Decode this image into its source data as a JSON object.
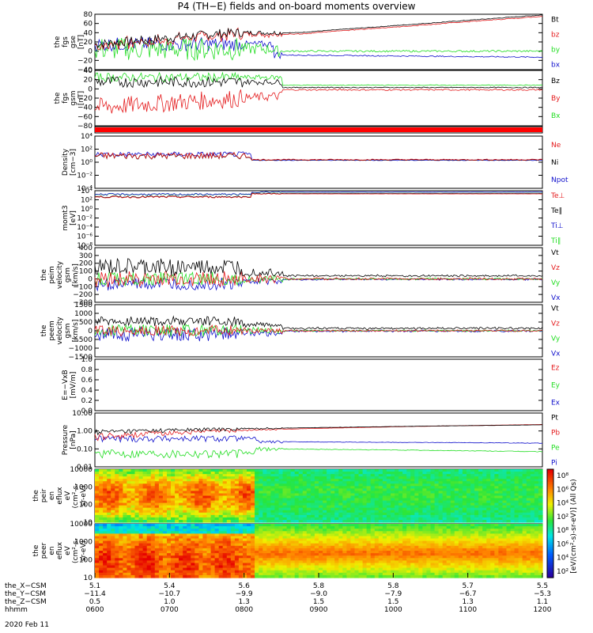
{
  "title": "P4 (TH−E) fields and on-board moments overview",
  "date_label": "2020 Feb 11",
  "colors": {
    "black": "#000000",
    "red": "#e41a1c",
    "green": "#22dd22",
    "blue": "#1010cc"
  },
  "chart_data": [
    {
      "type": "line",
      "title": "",
      "ylabel": [
        "the",
        "fgs",
        "gse",
        "[nT]"
      ],
      "ylim": [
        -40,
        80
      ],
      "yticks": [
        "80",
        "60",
        "40",
        "20",
        "0",
        "−20",
        "−40"
      ],
      "legend": [
        "Bt",
        "bz",
        "by",
        "bx"
      ],
      "legend_colors": [
        "#000000",
        "#e41a1c",
        "#22dd22",
        "#1010cc"
      ]
    },
    {
      "type": "line",
      "title": "",
      "ylabel": [
        "the",
        "fgs",
        "gsm",
        "[nT]"
      ],
      "ylim": [
        -80,
        40
      ],
      "yticks": [
        "40",
        "20",
        "0",
        "−20",
        "−40",
        "−60",
        "−80"
      ],
      "legend": [
        "Bz",
        "By",
        "Bx"
      ],
      "legend_colors": [
        "#000000",
        "#e41a1c",
        "#22dd22"
      ]
    },
    {
      "type": "flag",
      "title": "",
      "ylabel": [],
      "legend": [],
      "legend_colors": []
    },
    {
      "type": "line",
      "title": "",
      "ylabel": [
        "Density",
        "[cm−3]"
      ],
      "scale": "log",
      "yticks": [
        "10⁴",
        "10²",
        "10⁰",
        "10⁻²",
        "10⁻⁴"
      ],
      "legend": [
        "Ne",
        "Ni",
        "Npot"
      ],
      "legend_colors": [
        "#e41a1c",
        "#000000",
        "#1010cc"
      ]
    },
    {
      "type": "line",
      "title": "",
      "ylabel": [
        "momt3",
        "[eV]"
      ],
      "scale": "log",
      "yticks": [
        "10⁴",
        "10²",
        "10⁰",
        "10⁻²",
        "10⁻⁴",
        "10⁻⁶",
        "10⁻⁸"
      ],
      "legend": [
        "Te⊥",
        "Te∥",
        "Ti⊥",
        "Ti∥"
      ],
      "legend_colors": [
        "#e41a1c",
        "#000000",
        "#1010cc",
        "#22dd22"
      ]
    },
    {
      "type": "line",
      "title": "",
      "ylabel": [
        "the",
        "peim",
        "velocity",
        "gsm",
        "[km/s]"
      ],
      "ylim": [
        -300,
        400
      ],
      "yticks": [
        "400",
        "300",
        "200",
        "100",
        "0",
        "−100",
        "−200",
        "−300"
      ],
      "legend": [
        "Vt",
        "Vz",
        "Vy",
        "Vx"
      ],
      "legend_colors": [
        "#000000",
        "#e41a1c",
        "#22dd22",
        "#1010cc"
      ]
    },
    {
      "type": "line",
      "title": "",
      "ylabel": [
        "the",
        "peem",
        "velocity",
        "gsm",
        "[km/s]"
      ],
      "ylim": [
        -1500,
        1500
      ],
      "yticks": [
        "1500",
        "1000",
        "500",
        "0",
        "−500",
        "−1000",
        "−1500"
      ],
      "legend": [
        "Vt",
        "Vz",
        "Vy",
        "Vx"
      ],
      "legend_colors": [
        "#000000",
        "#e41a1c",
        "#22dd22",
        "#1010cc"
      ]
    },
    {
      "type": "line",
      "title": "",
      "ylabel": [
        "E=−VxB",
        "[mV/m]"
      ],
      "ylim": [
        0,
        1
      ],
      "yticks": [
        "1.0",
        "0.8",
        "0.6",
        "0.4",
        "0.2",
        "0.0"
      ],
      "legend": [
        "Ez",
        "Ey",
        "Ex"
      ],
      "legend_colors": [
        "#e41a1c",
        "#22dd22",
        "#1010cc"
      ]
    },
    {
      "type": "line",
      "title": "",
      "ylabel": [
        "Pressure",
        "[nPa]"
      ],
      "scale": "log",
      "yticks": [
        "10.00",
        "1.00",
        "0.10",
        "0.01"
      ],
      "legend": [
        "Pt",
        "Pb",
        "Pe",
        "Pi"
      ],
      "legend_colors": [
        "#000000",
        "#e41a1c",
        "#22dd22",
        "#1010cc"
      ]
    },
    {
      "type": "heatmap",
      "title": "",
      "ylabel": [
        "the",
        "peir",
        "en",
        "eflux",
        "eV",
        "(cm²-s-",
        "sr-eV)"
      ],
      "yticks": [
        "10000",
        "1000",
        "100",
        "10"
      ]
    },
    {
      "type": "heatmap",
      "title": "",
      "ylabel": [
        "the",
        "peer",
        "en",
        "eflux",
        "eV",
        "(cm²-s-",
        "sr-eV)"
      ],
      "yticks": [
        "10000",
        "1000",
        "100",
        "10"
      ]
    }
  ],
  "colorbar": {
    "ticks": [
      "10⁸",
      "10⁶",
      "10⁴",
      "10²",
      "10⁸",
      "10⁶",
      "10⁴",
      "10²"
    ],
    "label": "[eV/(cm²-s)-sr-eV)]  (All Qs)"
  },
  "x_axis": {
    "rows": [
      {
        "label": "the_X−CSM",
        "values": [
          "5.1",
          "5.4",
          "5.6",
          "5.8",
          "5.8",
          "5.7",
          "5.5"
        ]
      },
      {
        "label": "the_Y−CSM",
        "values": [
          "−11.4",
          "−10.7",
          "−9.9",
          "−9.0",
          "−7.9",
          "−6.7",
          "−5.3"
        ]
      },
      {
        "label": "the_Z−CSM",
        "values": [
          "0.5",
          "1.0",
          "1.3",
          "1.5",
          "1.5",
          "1.3",
          "1.1"
        ]
      },
      {
        "label": "hhmm",
        "values": [
          "0600",
          "0700",
          "0800",
          "0900",
          "1000",
          "1100",
          "1200"
        ]
      }
    ]
  }
}
